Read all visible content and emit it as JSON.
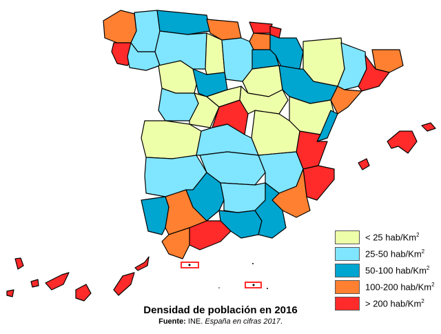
{
  "title": "Densidad de población en 2016",
  "source": {
    "label": "Fuente:",
    "text": " INE. ",
    "publication": "España en cifras 2017",
    "end": "."
  },
  "legend": [
    {
      "label": "< 25 hab/Km",
      "sup": "2",
      "color": "#eeffaa"
    },
    {
      "label": "25-50 hab/Km",
      "sup": "2",
      "color": "#80e5ff"
    },
    {
      "label": "50-100 hab/Km",
      "sup": "2",
      "color": "#00a5d0"
    },
    {
      "label": "100-200 hab/Km",
      "sup": "2",
      "color": "#ff8030"
    },
    {
      "label": "> 200 hab/Km",
      "sup": "2",
      "color": "#ff2a2a"
    }
  ],
  "highlight_color": "#ff2a2a"
}
